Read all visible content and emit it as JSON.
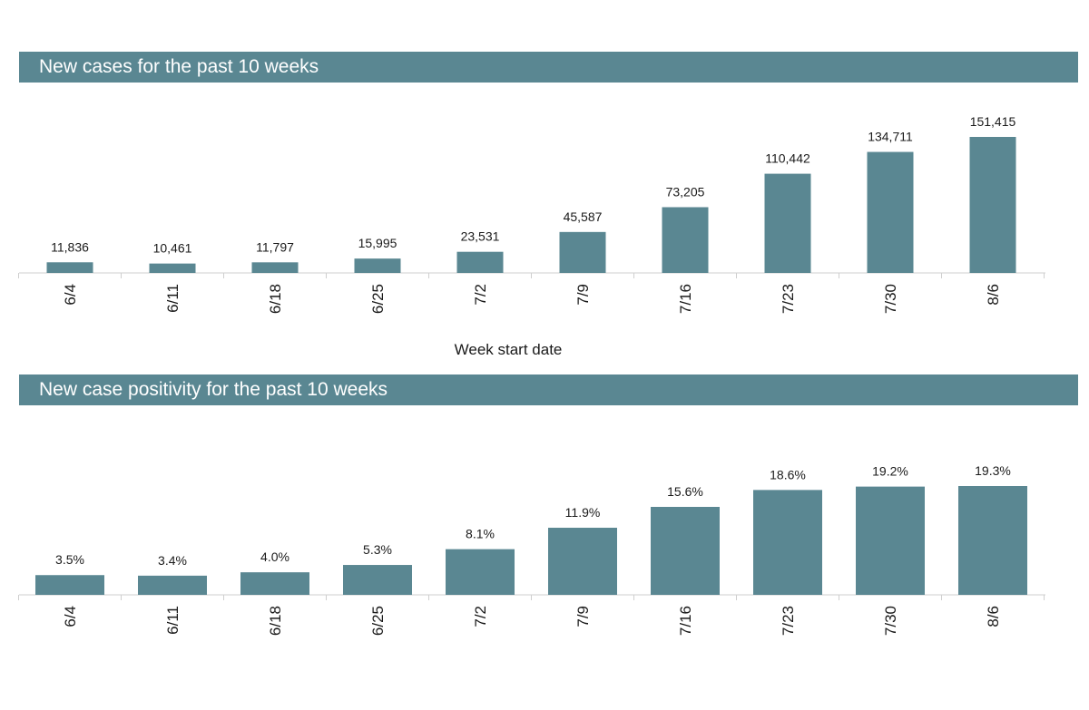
{
  "colors": {
    "bar": "#5a8792",
    "banner": "#5a8792",
    "banner_text": "#ffffff"
  },
  "chart_data": [
    {
      "type": "bar",
      "title": "New cases for the past 10 weeks",
      "categories": [
        "6/4",
        "6/11",
        "6/18",
        "6/25",
        "7/2",
        "7/9",
        "7/16",
        "7/23",
        "7/30",
        "8/6"
      ],
      "values": [
        11836,
        10461,
        11797,
        15995,
        23531,
        45587,
        73205,
        110442,
        134711,
        151415
      ],
      "data_labels": [
        "11,836",
        "10,461",
        "11,797",
        "15,995",
        "23,531",
        "45,587",
        "73,205",
        "110,442",
        "134,711",
        "151,415"
      ],
      "xlabel": "Week start date",
      "ylabel": "",
      "ylim": [
        0,
        151415
      ]
    },
    {
      "type": "bar",
      "title": "New case positivity for the past 10 weeks",
      "categories": [
        "6/4",
        "6/11",
        "6/18",
        "6/25",
        "7/2",
        "7/9",
        "7/16",
        "7/23",
        "7/30",
        "8/6"
      ],
      "values": [
        3.5,
        3.4,
        4.0,
        5.3,
        8.1,
        11.9,
        15.6,
        18.6,
        19.2,
        19.3
      ],
      "data_labels": [
        "3.5%",
        "3.4%",
        "4.0%",
        "5.3%",
        "8.1%",
        "11.9%",
        "15.6%",
        "18.6%",
        "19.2%",
        "19.3%"
      ],
      "xlabel": "",
      "ylabel": "",
      "ylim": [
        0,
        19.3
      ]
    }
  ]
}
